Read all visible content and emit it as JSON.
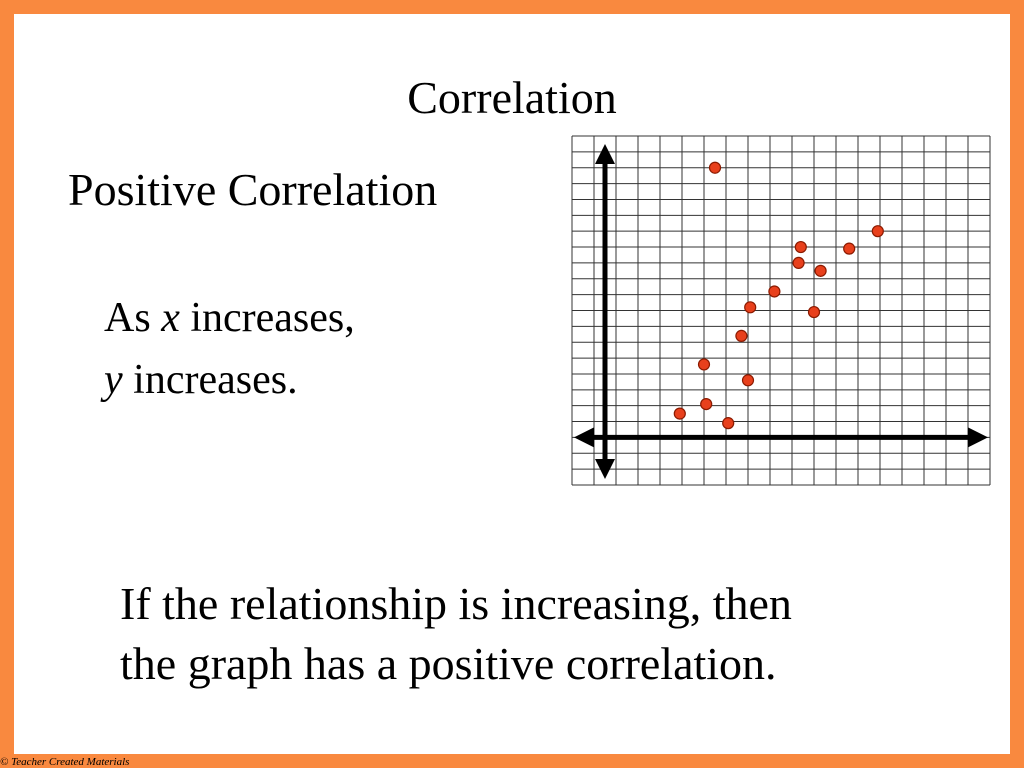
{
  "slide": {
    "title": "Correlation",
    "subtitle": "Positive Correlation",
    "description_line1_prefix": "As ",
    "description_line1_var": "x",
    "description_line1_suffix": " increases,",
    "description_line2_var": "y",
    "description_line2_suffix": " increases.",
    "conclusion_line1": "If the relationship is increasing, then",
    "conclusion_line2": "the graph has a positive correlation.",
    "footer": "© Teacher Created Materials"
  },
  "colors": {
    "border": "#f9893f",
    "point_fill": "#e8401c",
    "point_stroke": "#8b1a00",
    "grid": "#333333",
    "axis": "#000000"
  },
  "chart_data": {
    "type": "scatter",
    "title": "",
    "xlabel": "",
    "ylabel": "",
    "grid": true,
    "legend": "none",
    "grid_columns": 19,
    "grid_rows": 22,
    "xlim": [
      -1.5,
      17.5
    ],
    "ylim": [
      -3,
      19
    ],
    "points": [
      {
        "x": 5,
        "y": 17
      },
      {
        "x": 3.4,
        "y": 1.5
      },
      {
        "x": 4.6,
        "y": 2.1
      },
      {
        "x": 5.6,
        "y": 0.9
      },
      {
        "x": 4.5,
        "y": 4.6
      },
      {
        "x": 6.5,
        "y": 3.6
      },
      {
        "x": 6.2,
        "y": 6.4
      },
      {
        "x": 6.6,
        "y": 8.2
      },
      {
        "x": 7.7,
        "y": 9.2
      },
      {
        "x": 8.8,
        "y": 11.0
      },
      {
        "x": 8.9,
        "y": 12.0
      },
      {
        "x": 9.5,
        "y": 7.9
      },
      {
        "x": 9.8,
        "y": 10.5
      },
      {
        "x": 11.1,
        "y": 11.9
      },
      {
        "x": 12.4,
        "y": 13.0
      }
    ]
  }
}
